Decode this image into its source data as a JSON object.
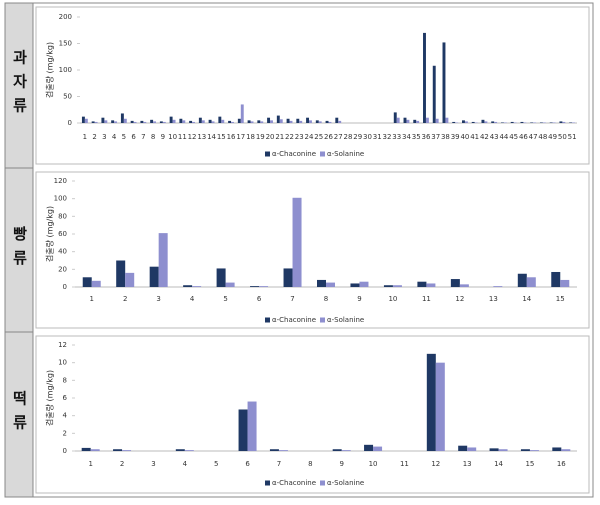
{
  "chart_data": [
    {
      "type": "bar",
      "group_label": "과자류",
      "y_label": "검출량 (mg/kg)",
      "categories": [
        "1",
        "2",
        "3",
        "4",
        "5",
        "6",
        "7",
        "8",
        "9",
        "10",
        "11",
        "12",
        "13",
        "14",
        "15",
        "16",
        "17",
        "18",
        "19",
        "20",
        "21",
        "22",
        "23",
        "24",
        "25",
        "26",
        "27",
        "28",
        "29",
        "30",
        "31",
        "32",
        "33",
        "34",
        "35",
        "36",
        "37",
        "38",
        "39",
        "40",
        "41",
        "42",
        "43",
        "44",
        "45",
        "46",
        "47",
        "48",
        "49",
        "50",
        "51"
      ],
      "series": [
        {
          "name": "α-Chaconine",
          "color": "#1f3864",
          "values": [
            12,
            3,
            10,
            5,
            18,
            4,
            4,
            6,
            3,
            12,
            8,
            4,
            10,
            6,
            12,
            4,
            8,
            5,
            5,
            10,
            14,
            8,
            8,
            10,
            5,
            4,
            10,
            0,
            0,
            0,
            0,
            0,
            20,
            10,
            6,
            170,
            108,
            152,
            2,
            5,
            2,
            6,
            3,
            1,
            2,
            2,
            1,
            1,
            1,
            3,
            1
          ]
        },
        {
          "name": "α-Solanine",
          "color": "#8e8fcf",
          "values": [
            8,
            2,
            5,
            3,
            8,
            2,
            2,
            3,
            2,
            6,
            5,
            2,
            5,
            3,
            6,
            2,
            35,
            3,
            3,
            5,
            7,
            4,
            4,
            5,
            3,
            2,
            4,
            0,
            0,
            0,
            0,
            0,
            10,
            6,
            4,
            10,
            8,
            10,
            1,
            3,
            1,
            3,
            2,
            1,
            1,
            1,
            1,
            1,
            1,
            2,
            1
          ]
        }
      ],
      "ylim": [
        0,
        200
      ],
      "yticks": [
        0,
        50,
        100,
        150,
        200
      ]
    },
    {
      "type": "bar",
      "group_label": "빵류",
      "y_label": "검출량 (mg/kg)",
      "categories": [
        "1",
        "2",
        "3",
        "4",
        "5",
        "6",
        "7",
        "8",
        "9",
        "10",
        "11",
        "12",
        "13",
        "14",
        "15"
      ],
      "series": [
        {
          "name": "α-Chaconine",
          "color": "#1f3864",
          "values": [
            11,
            30,
            23,
            2,
            21,
            1,
            21,
            8,
            4,
            2,
            6,
            9,
            0,
            15,
            17
          ]
        },
        {
          "name": "α-Solanine",
          "color": "#8e8fcf",
          "values": [
            7,
            16,
            61,
            1,
            5,
            1,
            101,
            5,
            6,
            2,
            4,
            3,
            1,
            11,
            8
          ]
        }
      ],
      "ylim": [
        0,
        120
      ],
      "yticks": [
        0,
        20,
        40,
        60,
        80,
        100,
        120
      ]
    },
    {
      "type": "bar",
      "group_label": "떡류",
      "y_label": "검출량 (mg/kg)",
      "categories": [
        "1",
        "2",
        "3",
        "4",
        "5",
        "6",
        "7",
        "8",
        "9",
        "10",
        "11",
        "12",
        "13",
        "14",
        "15",
        "16"
      ],
      "series": [
        {
          "name": "α-Chaconine",
          "color": "#1f3864",
          "values": [
            0.35,
            0.2,
            0,
            0.2,
            0,
            4.7,
            0.2,
            0,
            0.2,
            0.7,
            0,
            11,
            0.6,
            0.3,
            0.2,
            0.4
          ]
        },
        {
          "name": "α-Solanine",
          "color": "#8e8fcf",
          "values": [
            0.2,
            0.1,
            0,
            0.1,
            0,
            5.6,
            0.1,
            0,
            0.1,
            0.5,
            0,
            10,
            0.4,
            0.2,
            0.1,
            0.2
          ]
        }
      ],
      "ylim": [
        0,
        12
      ],
      "yticks": [
        0,
        2,
        4,
        6,
        8,
        10,
        12
      ]
    }
  ]
}
